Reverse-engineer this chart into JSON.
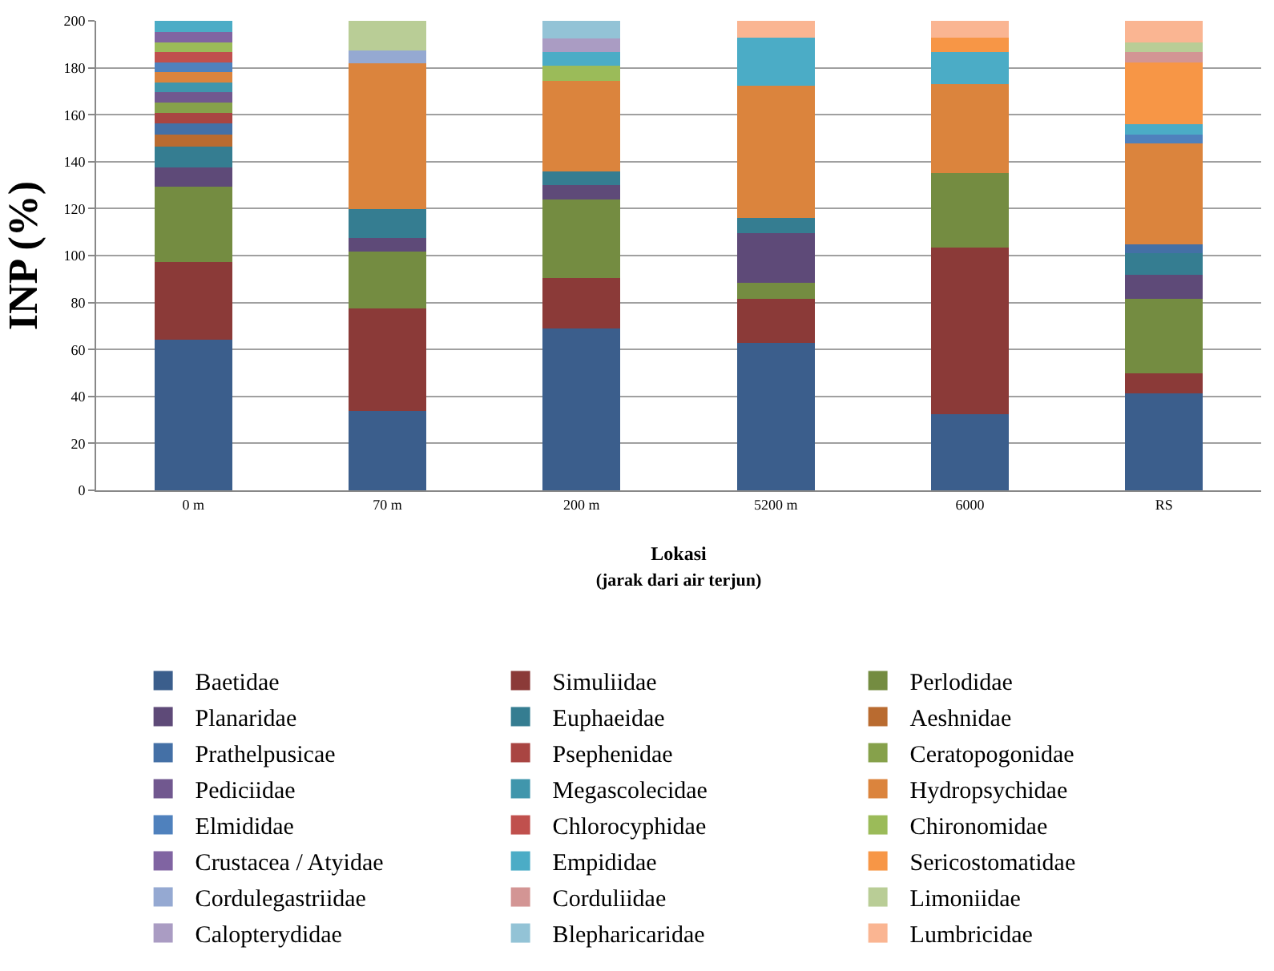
{
  "chart_data": {
    "type": "bar",
    "stacked": true,
    "ylabel": "INP (%)",
    "xlabel": "Lokasi\n(jarak dari air terjun)",
    "categories": [
      "0 m",
      "70 m",
      "200 m",
      "5200 m",
      "6000",
      "RS"
    ],
    "ylim": [
      0,
      200
    ],
    "yticks": [
      0,
      20,
      40,
      60,
      80,
      100,
      120,
      140,
      160,
      180,
      200
    ],
    "grid": "y",
    "legend": "bottom",
    "series": [
      {
        "name": "Baetidae",
        "color": "#3b5e8c",
        "values": [
          64.2,
          33.9,
          68.8,
          62.9,
          32.5,
          41.3
        ]
      },
      {
        "name": "Simuliidae",
        "color": "#8b3a38",
        "values": [
          33.2,
          43.5,
          21.7,
          18.8,
          70.8,
          8.4
        ]
      },
      {
        "name": "Perlodidae",
        "color": "#748c41",
        "values": [
          31.9,
          24.4,
          33.5,
          6.6,
          31.7,
          32.0
        ]
      },
      {
        "name": "Planaridae",
        "color": "#5e4a78",
        "values": [
          8.4,
          5.7,
          5.9,
          21.4,
          null,
          10.0
        ]
      },
      {
        "name": "Euphaeidae",
        "color": "#357d91",
        "values": [
          8.6,
          12.3,
          5.8,
          6.4,
          null,
          9.4
        ]
      },
      {
        "name": "Aeshnidae",
        "color": "#b96b30",
        "values": [
          5.2,
          null,
          null,
          null,
          null,
          null
        ]
      },
      {
        "name": "Prathelpusicae",
        "color": "#4470a6",
        "values": [
          4.9,
          null,
          null,
          null,
          null,
          3.7
        ]
      },
      {
        "name": "Psephenidae",
        "color": "#a94542",
        "values": [
          4.4,
          null,
          null,
          null,
          null,
          null
        ]
      },
      {
        "name": "Ceratopogonidae",
        "color": "#86a14b",
        "values": [
          4.4,
          null,
          null,
          null,
          null,
          null
        ]
      },
      {
        "name": "Pediciidae",
        "color": "#71588f",
        "values": [
          4.4,
          null,
          null,
          null,
          null,
          null
        ]
      },
      {
        "name": "Megascolecidae",
        "color": "#4096ac",
        "values": [
          4.0,
          null,
          null,
          null,
          null,
          null
        ]
      },
      {
        "name": "Hydropsychidae",
        "color": "#db843d",
        "values": [
          4.4,
          62.1,
          38.8,
          56.2,
          38.1,
          43.0
        ]
      },
      {
        "name": "Elmididae",
        "color": "#4f81bd",
        "values": [
          4.2,
          null,
          null,
          null,
          null,
          3.7
        ]
      },
      {
        "name": "Chlorocyphidae",
        "color": "#c0504d",
        "values": [
          4.4,
          null,
          null,
          null,
          null,
          null
        ]
      },
      {
        "name": "Chironomidae",
        "color": "#9bbb59",
        "values": [
          4.2,
          null,
          6.3,
          null,
          null,
          null
        ]
      },
      {
        "name": "Crustacea / Atyidae",
        "color": "#8064a2",
        "values": [
          4.4,
          null,
          null,
          null,
          null,
          null
        ]
      },
      {
        "name": "Empididae",
        "color": "#4bacc6",
        "values": [
          4.8,
          null,
          5.8,
          20.7,
          13.5,
          4.4
        ]
      },
      {
        "name": "Sericostomatidae",
        "color": "#f79646",
        "values": [
          null,
          null,
          null,
          null,
          6.4,
          26.3
        ]
      },
      {
        "name": "Cordulegastriidae",
        "color": "#95a9d2",
        "values": [
          null,
          5.6,
          null,
          null,
          null,
          null
        ]
      },
      {
        "name": "Corduliidae",
        "color": "#d39594",
        "values": [
          null,
          null,
          null,
          null,
          null,
          4.4
        ]
      },
      {
        "name": "Limoniidae",
        "color": "#b9cd96",
        "values": [
          null,
          12.5,
          null,
          null,
          null,
          4.2
        ]
      },
      {
        "name": "Calopterydidae",
        "color": "#aa9cc3",
        "values": [
          null,
          null,
          5.9,
          null,
          null,
          null
        ]
      },
      {
        "name": "Blepharicaridae",
        "color": "#93c3d6",
        "values": [
          null,
          null,
          7.5,
          null,
          null,
          null
        ]
      },
      {
        "name": "Lumbricidae",
        "color": "#fab592",
        "values": [
          null,
          null,
          null,
          7.0,
          7.0,
          9.2
        ]
      }
    ]
  }
}
